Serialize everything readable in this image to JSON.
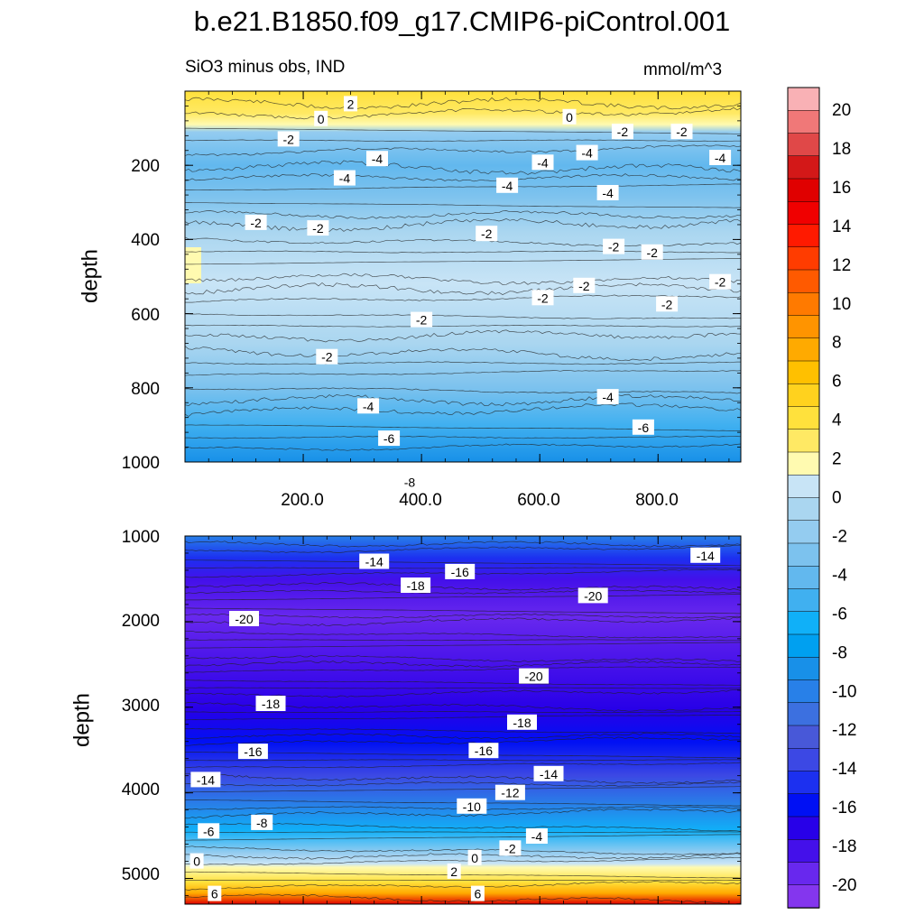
{
  "title": "b.e21.B1850.f09_g17.CMIP6-piControl.001",
  "subtitle_left": "SiO3 minus obs, IND",
  "subtitle_right": "mmol/m^3",
  "chart_data": [
    {
      "type": "heatmap",
      "panel": "upper",
      "ylabel": "depth",
      "xlabel": "",
      "xlim": [
        0,
        940
      ],
      "ylim": [
        1000,
        0
      ],
      "x_ticks": [
        "200.0",
        "400.0",
        "600.0",
        "800.0"
      ],
      "y_ticks": [
        "200",
        "400",
        "600",
        "800",
        "1000"
      ],
      "contour_labels": [
        {
          "text": "2",
          "x": 280,
          "y": 35
        },
        {
          "text": "0",
          "x": 230,
          "y": 75
        },
        {
          "text": "0",
          "x": 650,
          "y": 70
        },
        {
          "text": "-2",
          "x": 175,
          "y": 130
        },
        {
          "text": "-2",
          "x": 740,
          "y": 110
        },
        {
          "text": "-2",
          "x": 840,
          "y": 110
        },
        {
          "text": "-4",
          "x": 325,
          "y": 183
        },
        {
          "text": "-4",
          "x": 270,
          "y": 235
        },
        {
          "text": "-4",
          "x": 605,
          "y": 193
        },
        {
          "text": "-4",
          "x": 680,
          "y": 167
        },
        {
          "text": "-4",
          "x": 545,
          "y": 255
        },
        {
          "text": "-4",
          "x": 715,
          "y": 275
        },
        {
          "text": "-4",
          "x": 905,
          "y": 180
        },
        {
          "text": "-2",
          "x": 120,
          "y": 355
        },
        {
          "text": "-2",
          "x": 225,
          "y": 370
        },
        {
          "text": "-2",
          "x": 510,
          "y": 385
        },
        {
          "text": "-2",
          "x": 725,
          "y": 420
        },
        {
          "text": "-2",
          "x": 790,
          "y": 435
        },
        {
          "text": "-2",
          "x": 675,
          "y": 525
        },
        {
          "text": "-2",
          "x": 605,
          "y": 558
        },
        {
          "text": "-2",
          "x": 815,
          "y": 575
        },
        {
          "text": "-2",
          "x": 905,
          "y": 515
        },
        {
          "text": "-2",
          "x": 400,
          "y": 617
        },
        {
          "text": "-2",
          "x": 240,
          "y": 717
        },
        {
          "text": "-4",
          "x": 310,
          "y": 850
        },
        {
          "text": "-4",
          "x": 715,
          "y": 825
        },
        {
          "text": "-6",
          "x": 345,
          "y": 937
        },
        {
          "text": "-6",
          "x": 775,
          "y": 907
        },
        {
          "text": "-8",
          "x": 380,
          "y": 1055
        }
      ]
    },
    {
      "type": "heatmap",
      "panel": "lower",
      "ylabel": "depth",
      "xlabel": "",
      "xlim": [
        0,
        940
      ],
      "ylim": [
        5300,
        1000
      ],
      "y_ticks": [
        "1000",
        "2000",
        "3000",
        "4000",
        "5000"
      ],
      "contour_labels": [
        {
          "text": "-14",
          "x": 320,
          "y": 1300
        },
        {
          "text": "-18",
          "x": 390,
          "y": 1580
        },
        {
          "text": "-16",
          "x": 465,
          "y": 1420
        },
        {
          "text": "-20",
          "x": 690,
          "y": 1700
        },
        {
          "text": "-14",
          "x": 880,
          "y": 1230
        },
        {
          "text": "-20",
          "x": 100,
          "y": 1970
        },
        {
          "text": "-20",
          "x": 590,
          "y": 2640
        },
        {
          "text": "-18",
          "x": 145,
          "y": 2960
        },
        {
          "text": "-18",
          "x": 570,
          "y": 3180
        },
        {
          "text": "-16",
          "x": 115,
          "y": 3520
        },
        {
          "text": "-16",
          "x": 505,
          "y": 3510
        },
        {
          "text": "-14",
          "x": 35,
          "y": 3850
        },
        {
          "text": "-14",
          "x": 615,
          "y": 3780
        },
        {
          "text": "-12",
          "x": 550,
          "y": 4000
        },
        {
          "text": "-10",
          "x": 485,
          "y": 4160
        },
        {
          "text": "-8",
          "x": 130,
          "y": 4350
        },
        {
          "text": "-6",
          "x": 40,
          "y": 4450
        },
        {
          "text": "-4",
          "x": 595,
          "y": 4510
        },
        {
          "text": "-2",
          "x": 550,
          "y": 4650
        },
        {
          "text": "0",
          "x": 20,
          "y": 4800
        },
        {
          "text": "0",
          "x": 490,
          "y": 4760
        },
        {
          "text": "2",
          "x": 455,
          "y": 4920
        },
        {
          "text": "6",
          "x": 50,
          "y": 5180
        },
        {
          "text": "6",
          "x": 495,
          "y": 5180
        }
      ]
    }
  ],
  "colorbar": {
    "labels": [
      "20",
      "18",
      "16",
      "14",
      "12",
      "10",
      "8",
      "6",
      "4",
      "2",
      "0",
      "-2",
      "-4",
      "-6",
      "-8",
      "-10",
      "-12",
      "-14",
      "-16",
      "-18",
      "-20"
    ],
    "colors": [
      "#f9b1b5",
      "#f07878",
      "#e04848",
      "#d31818",
      "#e00000",
      "#f00000",
      "#ff1a00",
      "#ff3c00",
      "#ff5a00",
      "#ff7a00",
      "#ff9400",
      "#ffaa00",
      "#ffc000",
      "#ffd21e",
      "#ffe13c",
      "#ffe964",
      "#fffab0",
      "#c8e4f6",
      "#aad6f0",
      "#94ccf0",
      "#7cc2ee",
      "#62b8ee",
      "#40b0f0",
      "#10b0f8",
      "#00a0f0",
      "#1890e8",
      "#2880e8",
      "#3c70e0",
      "#4858d8",
      "#3c48e4",
      "#1c30f0",
      "#0010f4",
      "#2800e8",
      "#4410ea",
      "#6828ee",
      "#8436ee"
    ]
  }
}
